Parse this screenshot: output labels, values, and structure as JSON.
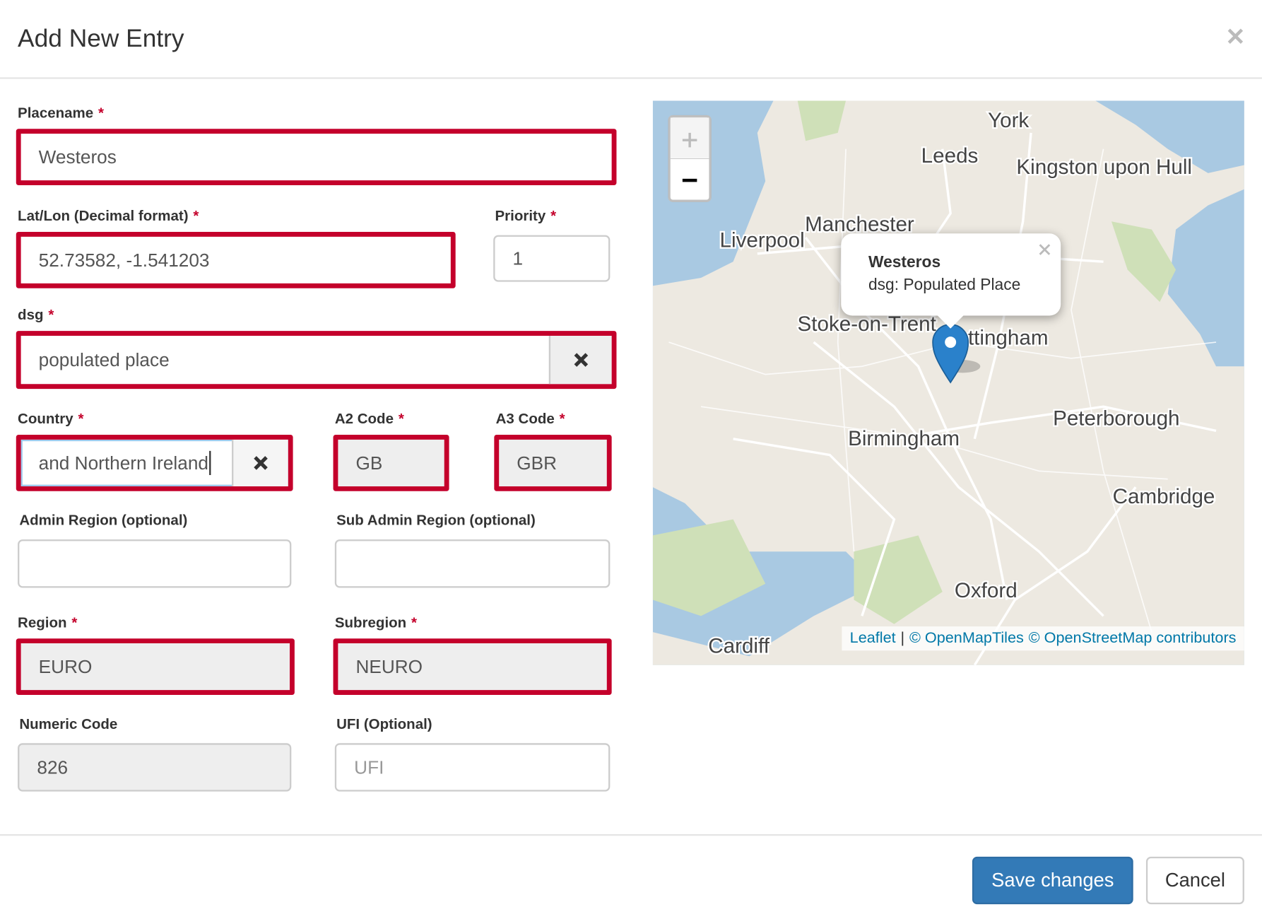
{
  "header": {
    "title": "Add New Entry"
  },
  "form": {
    "required_mark": "*",
    "fields": [
      {
        "label": "Placename",
        "required": true,
        "value": "Westeros",
        "highlighted": true
      },
      {
        "label": "Lat/Lon (Decimal format)",
        "required": true,
        "value": "52.73582, -1.541203",
        "highlighted": true
      },
      {
        "label": "Priority",
        "required": true,
        "value": "1",
        "highlighted": false
      },
      {
        "label": "dsg",
        "required": true,
        "value": "populated place",
        "highlighted": true,
        "clearable": true
      },
      {
        "label": "Country",
        "required": true,
        "value": "and Northern Ireland",
        "highlighted": true,
        "clearable": true,
        "focused": true
      },
      {
        "label": "A2 Code",
        "required": true,
        "value": "GB",
        "highlighted": true,
        "readonly": true
      },
      {
        "label": "A3 Code",
        "required": true,
        "value": "GBR",
        "highlighted": true,
        "readonly": true
      },
      {
        "label": "Admin Region (optional)",
        "required": false,
        "value": "",
        "highlighted": false
      },
      {
        "label": "Sub Admin Region (optional)",
        "required": false,
        "value": "",
        "highlighted": false
      },
      {
        "label": "Region",
        "required": true,
        "value": "EURO",
        "highlighted": true,
        "readonly": true
      },
      {
        "label": "Subregion",
        "required": true,
        "value": "NEURO",
        "highlighted": true,
        "readonly": true
      },
      {
        "label": "Numeric Code",
        "required": false,
        "value": "826",
        "highlighted": false,
        "readonly": true
      },
      {
        "label": "UFI (Optional)",
        "required": false,
        "placeholder": "UFI",
        "highlighted": false
      }
    ]
  },
  "map": {
    "cities": [
      "York",
      "Leeds",
      "Kingston upon Hull",
      "Manchester",
      "Liverpool",
      "Stoke-on-Trent",
      "Nottingham",
      "Birmingham",
      "Peterborough",
      "Cambridge",
      "Oxford",
      "Cardiff"
    ],
    "popup": {
      "title": "Westeros",
      "text": "dsg: Populated Place"
    },
    "attribution": {
      "links": [
        "Leaflet",
        "© OpenMapTiles",
        "© OpenStreetMap contributors"
      ],
      "separator": "|"
    }
  },
  "footer": {
    "buttons": [
      "Save changes",
      "Cancel"
    ]
  }
}
